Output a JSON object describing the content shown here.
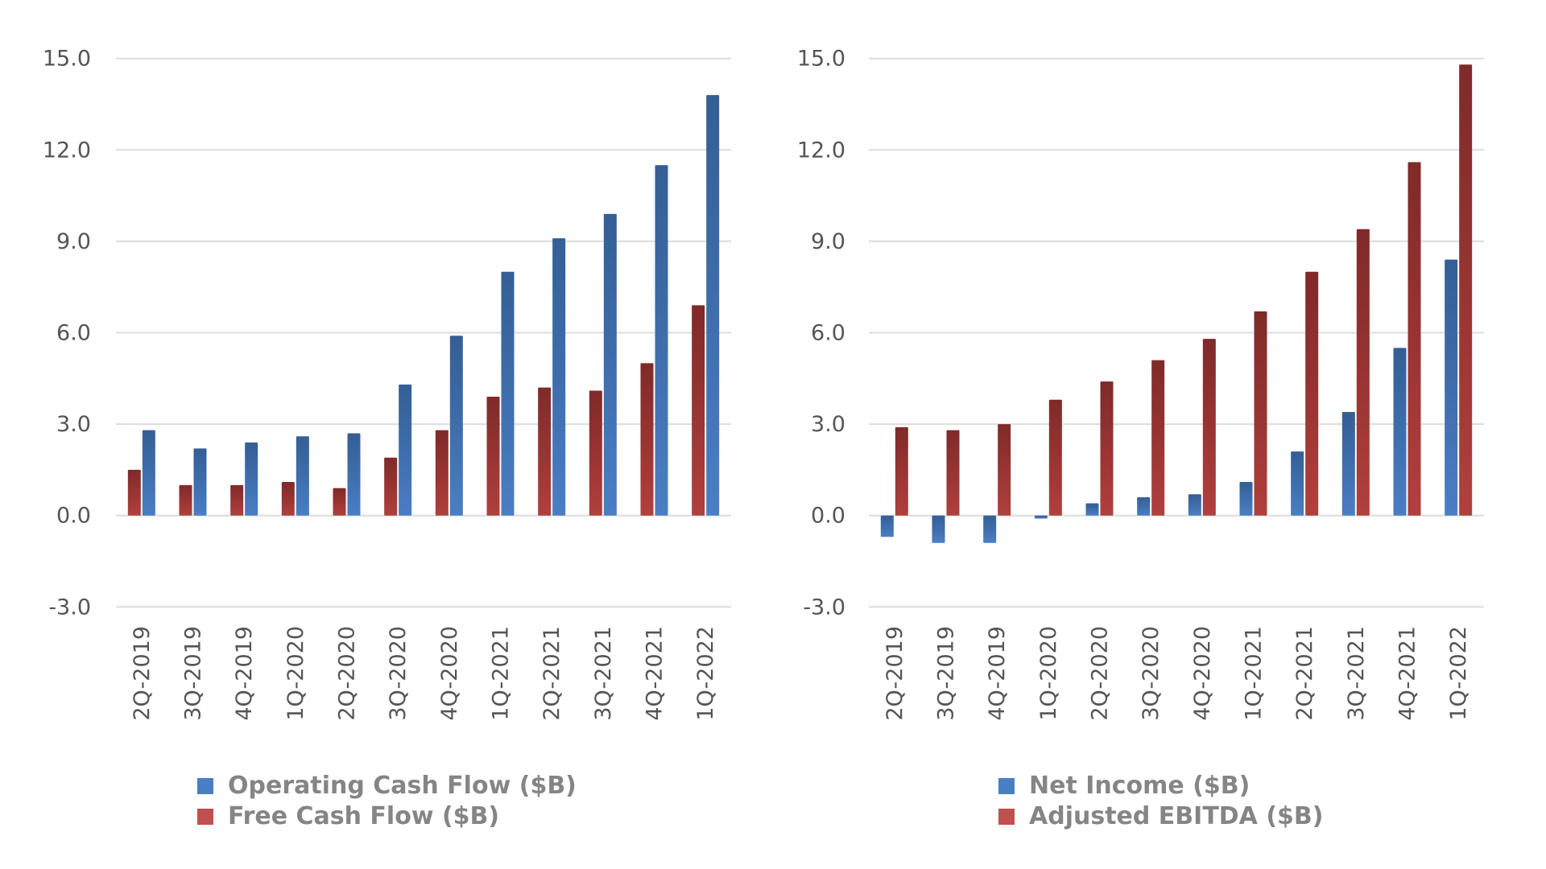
{
  "colors": {
    "blue": "#4a7ec4",
    "blue_dark": "#345f95",
    "red": "#c0504d",
    "red_dark": "#7f2a2a",
    "grid": "#dcdcdc",
    "tick_text": "#555555",
    "legend_text": "#858585"
  },
  "chart_data": [
    {
      "type": "bar",
      "title": "",
      "xlabel": "",
      "ylabel": "",
      "ylim": [
        -3.0,
        15.0
      ],
      "yticks": [
        "15.0",
        "12.0",
        "9.0",
        "6.0",
        "3.0",
        "0.0",
        "-3.0"
      ],
      "ytick_values": [
        15,
        12,
        9,
        6,
        3,
        0,
        -3
      ],
      "grid": true,
      "legend_position": "bottom",
      "categories": [
        "2Q-2019",
        "3Q-2019",
        "4Q-2019",
        "1Q-2020",
        "2Q-2020",
        "3Q-2020",
        "4Q-2020",
        "1Q-2021",
        "2Q-2021",
        "3Q-2021",
        "4Q-2021",
        "1Q-2022"
      ],
      "series": [
        {
          "name": "Free Cash Flow ($B)",
          "color": "red",
          "values": [
            1.5,
            1.0,
            1.0,
            1.1,
            0.9,
            1.9,
            2.8,
            3.9,
            4.2,
            4.1,
            5.0,
            6.9
          ]
        },
        {
          "name": "Operating Cash Flow ($B)",
          "color": "blue",
          "values": [
            2.8,
            2.2,
            2.4,
            2.6,
            2.7,
            4.3,
            5.9,
            8.0,
            9.1,
            9.9,
            11.5,
            13.8
          ]
        }
      ],
      "legend": [
        {
          "label": "Operating Cash Flow ($B)",
          "color": "blue"
        },
        {
          "label": "Free Cash Flow ($B)",
          "color": "red"
        }
      ]
    },
    {
      "type": "bar",
      "title": "",
      "xlabel": "",
      "ylabel": "",
      "ylim": [
        -3.0,
        15.0
      ],
      "yticks": [
        "15.0",
        "12.0",
        "9.0",
        "6.0",
        "3.0",
        "0.0",
        "-3.0"
      ],
      "ytick_values": [
        15,
        12,
        9,
        6,
        3,
        0,
        -3
      ],
      "grid": true,
      "legend_position": "bottom",
      "categories": [
        "2Q-2019",
        "3Q-2019",
        "4Q-2019",
        "1Q-2020",
        "2Q-2020",
        "3Q-2020",
        "4Q-2020",
        "1Q-2021",
        "2Q-2021",
        "3Q-2021",
        "4Q-2021",
        "1Q-2022"
      ],
      "series": [
        {
          "name": "Net Income ($B)",
          "color": "blue",
          "values": [
            -0.7,
            -0.9,
            -0.9,
            -0.1,
            0.4,
            0.6,
            0.7,
            1.1,
            2.1,
            3.4,
            5.5,
            8.4
          ]
        },
        {
          "name": "Adjusted EBITDA ($B)",
          "color": "red",
          "values": [
            2.9,
            2.8,
            3.0,
            3.8,
            4.4,
            5.1,
            5.8,
            6.7,
            8.0,
            9.4,
            11.6,
            14.8
          ]
        }
      ],
      "legend": [
        {
          "label": "Net Income ($B)",
          "color": "blue"
        },
        {
          "label": "Adjusted EBITDA ($B)",
          "color": "red"
        }
      ]
    }
  ]
}
